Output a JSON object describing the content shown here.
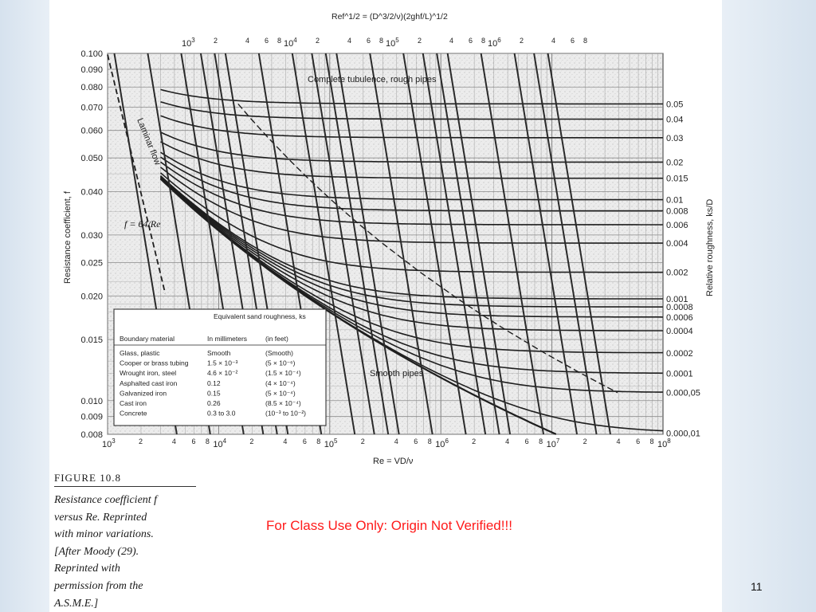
{
  "slide": {
    "number": "11",
    "notice": "For Class Use Only: Origin Not Verified!!!"
  },
  "caption": {
    "figure_label": "FIGURE 10.8",
    "lines": [
      "Resistance coefficient f",
      "versus Re. Reprinted",
      "with minor variations.",
      "[After Moody (29).",
      "Reprinted with",
      "permission from the",
      "A.S.M.E.]"
    ]
  },
  "colors": {
    "notice": "#ff1a1a",
    "chart_bg": "#e9e9e9",
    "ink": "#1e1e1e"
  },
  "chart_data": {
    "type": "line",
    "title": "",
    "xlabel": "Re = VD/ν",
    "ylabel": "Resistance coefficient, f",
    "y2label": "Relative roughness, ks/D",
    "top_axis_label": "Ref^1/2 = (D^3/2/ν)(2ghf/L)^1/2",
    "x_scale": "log",
    "y_scale": "log",
    "xlim": [
      1000,
      100000000
    ],
    "ylim": [
      0.008,
      0.1
    ],
    "grid": true,
    "x_ticks_major": [
      "10^3",
      "10^4",
      "10^5",
      "10^6",
      "10^7",
      "10^8"
    ],
    "x_ticks_minor_labels": [
      "2",
      "4",
      "6",
      "8"
    ],
    "top_ticks_major": [
      "10^3",
      "10^4",
      "10^5",
      "10^6"
    ],
    "y_tick_labels": [
      "0.100",
      "0.090",
      "0.080",
      "0.070",
      "0.060",
      "0.050",
      "0.040",
      "0.030",
      "0.025",
      "0.020",
      "0.015",
      "0.010",
      "0.009",
      "0.008"
    ],
    "y_tick_values": [
      0.1,
      0.09,
      0.08,
      0.07,
      0.06,
      0.05,
      0.04,
      0.03,
      0.025,
      0.02,
      0.015,
      0.01,
      0.009,
      0.008
    ],
    "relative_roughness_labels": [
      "0.05",
      "0.04",
      "0.03",
      "0.02",
      "0.015",
      "0.01",
      "0.008",
      "0.006",
      "0.004",
      "0.002",
      "0.001",
      "0.0008",
      "0.0006",
      "0.0004",
      "0.0002",
      "0.0001",
      "0.000,05",
      "0.000,01"
    ],
    "relative_roughness_values": [
      0.05,
      0.04,
      0.03,
      0.02,
      0.015,
      0.01,
      0.008,
      0.006,
      0.004,
      0.002,
      0.001,
      0.0008,
      0.0006,
      0.0004,
      0.0002,
      0.0001,
      5e-05,
      1e-05
    ],
    "annotations": {
      "laminar_flow": "Laminar flow",
      "laminar_formula": "f = 64/Re",
      "complete_turbulence": "Complete tubulence, rough pipes",
      "smooth_pipes": "Smooth pipes"
    },
    "laminar_series": {
      "name": "Laminar flow",
      "formula": "f = 64/Re",
      "x_range": [
        1000,
        3300
      ]
    },
    "roughness_table": {
      "title": "Equivalent sand roughness, ks",
      "headers": [
        "Boundary material",
        "In millimeters",
        "(in feet)"
      ],
      "rows": [
        [
          "Glass, plastic",
          "Smooth",
          "(Smooth)"
        ],
        [
          "Cooper or brass tubing",
          "1.5 × 10⁻³",
          "(5 × 10⁻⁶)"
        ],
        [
          "Wrought iron, steel",
          "4.6 × 10⁻²",
          "(1.5 × 10⁻⁴)"
        ],
        [
          "Asphalted cast iron",
          "0.12",
          "(4 × 10⁻⁴)"
        ],
        [
          "Galvanized iron",
          "0.15",
          "(5 × 10⁻⁴)"
        ],
        [
          "Cast iron",
          "0.26",
          "(8.5 × 10⁻⁴)"
        ],
        [
          "Concrete",
          "0.3 to 3.0",
          "(10⁻³ to 10⁻²)"
        ]
      ]
    }
  }
}
